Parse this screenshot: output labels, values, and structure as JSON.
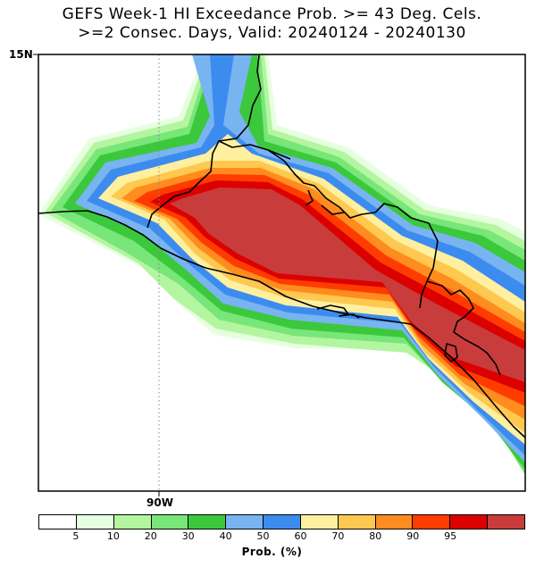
{
  "title_line1": "GEFS Week-1 HI Exceedance Prob. >= 43 Deg. Cels.",
  "title_line2": ">=2 Consec. Days, Valid: 20240124 - 20240130",
  "axes": {
    "lat_label": "15N",
    "lon_label": "90W"
  },
  "colorbar": {
    "label": "Prob. (%)",
    "colors": [
      "#ffffff",
      "#e6ffe0",
      "#b4f5a0",
      "#78e678",
      "#3cc83c",
      "#78b4f0",
      "#3c8cf0",
      "#fff0a0",
      "#ffc850",
      "#ff8c1e",
      "#ff3c00",
      "#dc0000",
      "#c83c3c"
    ],
    "ticks": [
      "5",
      "10",
      "20",
      "30",
      "40",
      "50",
      "60",
      "70",
      "80",
      "90",
      "95"
    ]
  },
  "prob_bands": [
    {
      "level": "5",
      "color": "#e6ffe0"
    },
    {
      "level": "10",
      "color": "#b4f5a0"
    },
    {
      "level": "20",
      "color": "#78e678"
    },
    {
      "level": "30",
      "color": "#3cc83c"
    },
    {
      "level": "40",
      "color": "#78b4f0"
    },
    {
      "level": "50",
      "color": "#3c8cf0"
    },
    {
      "level": "60",
      "color": "#fff0a0"
    },
    {
      "level": "70",
      "color": "#ffc850"
    },
    {
      "level": "80",
      "color": "#ff8c1e"
    },
    {
      "level": "90",
      "color": "#ff3c00"
    },
    {
      "level": "95",
      "color": "#dc0000"
    },
    {
      "level": ">95",
      "color": "#c83c3c"
    }
  ]
}
